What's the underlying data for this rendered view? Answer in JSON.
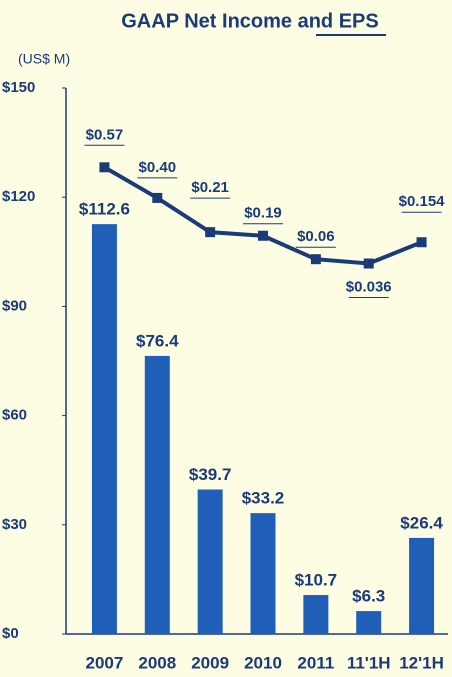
{
  "chart_data": {
    "type": "bar",
    "title": "GAAP Net Income and EPS",
    "unit_label": "(US$ M)",
    "categories": [
      "2007",
      "2008",
      "2009",
      "2010",
      "2011",
      "11'1H",
      "12'1H"
    ],
    "series": [
      {
        "name": "Net Income",
        "type": "bar",
        "color": "#1f5fb8",
        "values": [
          112.6,
          76.4,
          39.7,
          33.2,
          10.7,
          6.3,
          26.4
        ],
        "value_labels": [
          "$112.6",
          "$76.4",
          "$39.7",
          "$33.2",
          "$10.7",
          "$6.3",
          "$26.4"
        ]
      },
      {
        "name": "EPS",
        "type": "line",
        "axis": "y2",
        "color": "#1b3a78",
        "values": [
          0.57,
          0.4,
          0.21,
          0.19,
          0.06,
          0.036,
          0.154
        ],
        "value_labels": [
          "$0.57",
          "$0.40",
          "$0.21",
          "$0.19",
          "$0.06",
          "$0.036",
          "$0.154"
        ]
      }
    ],
    "ylim": [
      0,
      150
    ],
    "yticks": [
      {
        "value": 0,
        "label": "$0"
      },
      {
        "value": 30,
        "label": "$30"
      },
      {
        "value": 60,
        "label": "$60"
      },
      {
        "value": 90,
        "label": "$90"
      },
      {
        "value": 120,
        "label": "$120"
      },
      {
        "value": 150,
        "label": "$150"
      }
    ],
    "y2lim": [
      -2.02,
      1.01
    ],
    "grid": false
  }
}
